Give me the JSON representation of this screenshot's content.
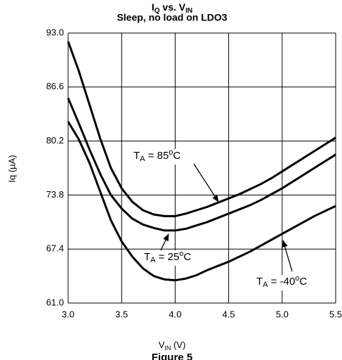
{
  "chart_data": {
    "type": "line",
    "title": [
      "I",
      "Q",
      " vs. V",
      "IN"
    ],
    "subtitle": "Sleep, no load on LDO3",
    "x_label": [
      "V",
      "IN",
      " (V)"
    ],
    "y_label": "Iq (µA)",
    "caption": "Figure 5",
    "x": [
      3.0,
      3.1,
      3.2,
      3.3,
      3.4,
      3.5,
      3.6,
      3.7,
      3.8,
      3.9,
      4.0,
      4.1,
      4.2,
      4.3,
      4.4,
      4.5,
      4.6,
      4.7,
      4.8,
      4.9,
      5.0,
      5.1,
      5.2,
      5.3,
      5.4,
      5.5
    ],
    "series": [
      {
        "color": "#000000",
        "values": [
          92.0,
          88.5,
          84.5,
          80.5,
          77.0,
          74.6,
          73.0,
          72.0,
          71.5,
          71.3,
          71.3,
          71.6,
          72.0,
          72.4,
          72.9,
          73.4,
          73.9,
          74.5,
          75.1,
          75.8,
          76.6,
          77.4,
          78.2,
          79.0,
          79.8,
          80.6
        ]
      },
      {
        "color": "#000000",
        "values": [
          85.3,
          82.3,
          79.2,
          76.3,
          73.8,
          72.2,
          71.0,
          70.3,
          69.9,
          69.6,
          69.6,
          69.8,
          70.2,
          70.6,
          71.1,
          71.6,
          72.1,
          72.6,
          73.2,
          73.9,
          74.6,
          75.4,
          76.2,
          77.0,
          77.8,
          78.6
        ]
      },
      {
        "color": "#000000",
        "values": [
          82.5,
          80.4,
          77.6,
          74.2,
          70.8,
          68.3,
          66.5,
          65.1,
          64.2,
          63.8,
          63.7,
          63.9,
          64.3,
          64.9,
          65.4,
          65.9,
          66.5,
          67.1,
          67.8,
          68.5,
          69.2,
          69.9,
          70.6,
          71.3,
          71.9,
          72.5
        ]
      }
    ],
    "annotations": [
      [
        "T",
        "A",
        " = 85",
        "o",
        "C"
      ],
      [
        "T",
        "A",
        " = 25",
        "o",
        "C"
      ],
      [
        "T",
        "A",
        " = -40",
        "o",
        "C"
      ]
    ],
    "xlim": [
      3.0,
      5.5
    ],
    "xticks": [
      {
        "value": 3.0,
        "label": "3.0"
      },
      3.5,
      {
        "value": 4.0,
        "label": "4.0"
      },
      4.5,
      {
        "value": 5.0,
        "label": "5.0"
      },
      5.5
    ],
    "ylim": [
      61.0,
      93.0
    ],
    "yticks": [
      {
        "value": 61.0,
        "label": "61.0"
      },
      67.4,
      73.8,
      80.2,
      86.6,
      {
        "value": 93.0,
        "label": "93.0"
      }
    ],
    "grid": true
  }
}
